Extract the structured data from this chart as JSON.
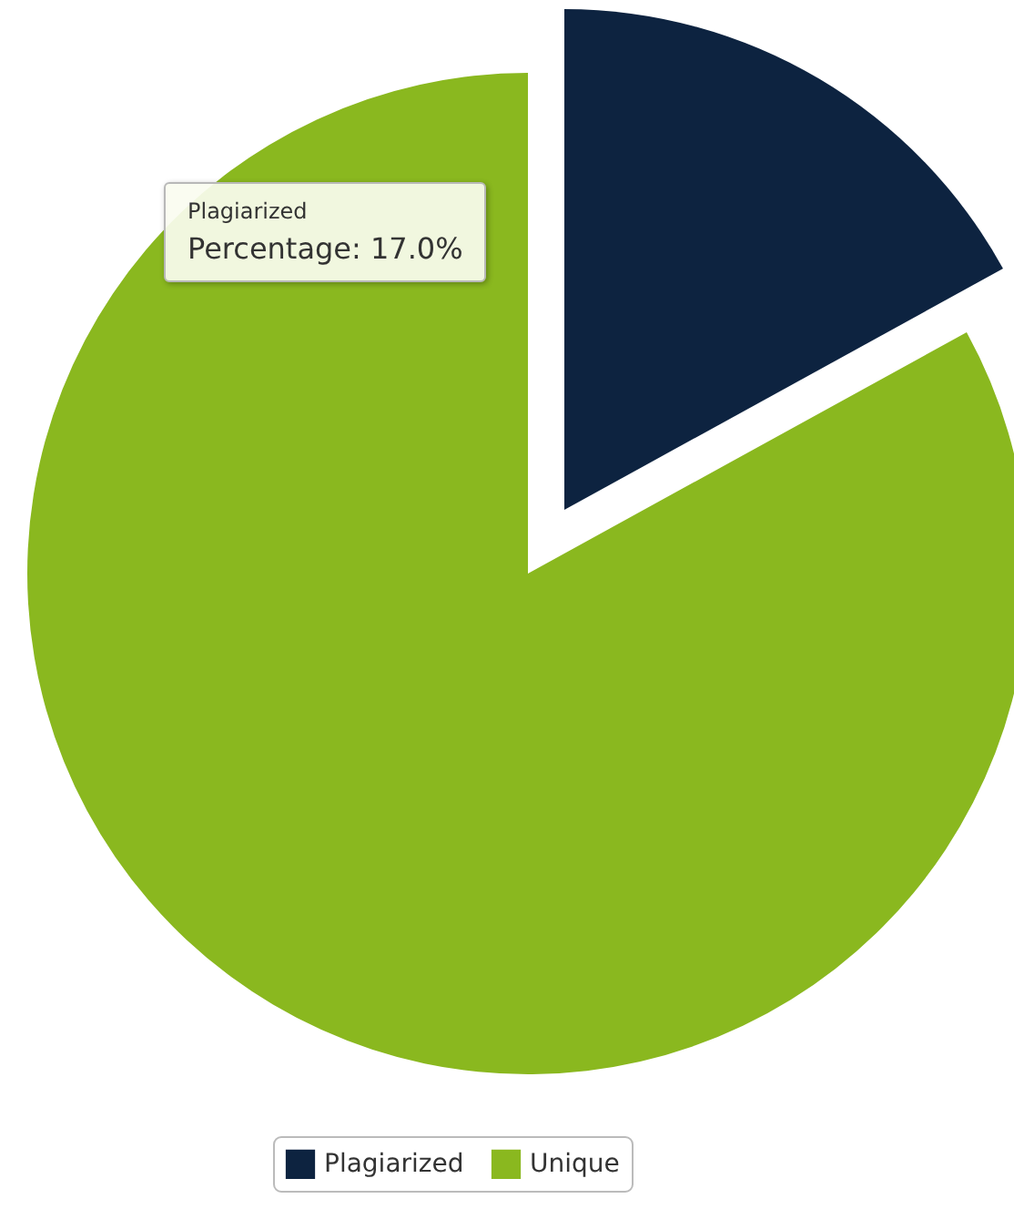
{
  "chart_data": {
    "type": "pie",
    "categories": [
      "Plagiarized",
      "Unique"
    ],
    "values": [
      17,
      83
    ],
    "colors": [
      "#0d2340",
      "#8ab81f"
    ],
    "legend": "bottom",
    "annotations": [
      "Plagiarized",
      "Percentage: 17.0%"
    ]
  }
}
